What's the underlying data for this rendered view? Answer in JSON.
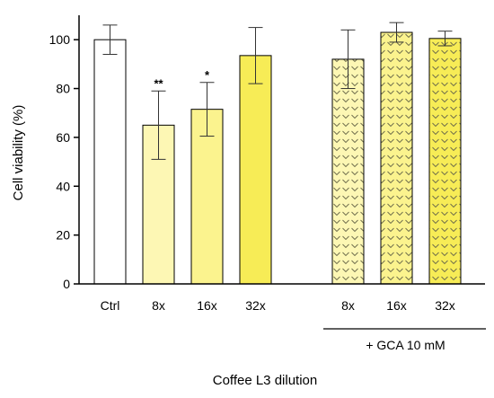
{
  "chart_data": {
    "type": "bar",
    "ylabel": "Cell viability (%)",
    "xlabel": "Coffee L3 dilution",
    "ylim": [
      0,
      110
    ],
    "yticks": [
      0,
      20,
      40,
      60,
      80,
      100
    ],
    "grid": false,
    "groups": [
      {
        "label": "",
        "bars": [
          {
            "category": "Ctrl",
            "value": 100,
            "error": 6,
            "significance": "",
            "fill": "#ffffff",
            "pattern": "none"
          },
          {
            "category": "8x",
            "value": 65,
            "error": 14,
            "significance": "**",
            "fill": "#fdf7b4",
            "pattern": "none"
          },
          {
            "category": "16x",
            "value": 71.5,
            "error": 11,
            "significance": "*",
            "fill": "#fbf38e",
            "pattern": "none"
          },
          {
            "category": "32x",
            "value": 93.5,
            "error": 11.5,
            "significance": "",
            "fill": "#f7ec56",
            "pattern": "none"
          }
        ]
      },
      {
        "label": "+ GCA 10 mM",
        "bars": [
          {
            "category": "8x",
            "value": 92,
            "error": 12,
            "significance": "",
            "fill": "#fdf7b4",
            "pattern": "chevron"
          },
          {
            "category": "16x",
            "value": 103,
            "error": 4,
            "significance": "",
            "fill": "#fbf38e",
            "pattern": "chevron"
          },
          {
            "category": "32x",
            "value": 100.5,
            "error": 3,
            "significance": "",
            "fill": "#f7ec56",
            "pattern": "chevron"
          }
        ]
      }
    ]
  }
}
